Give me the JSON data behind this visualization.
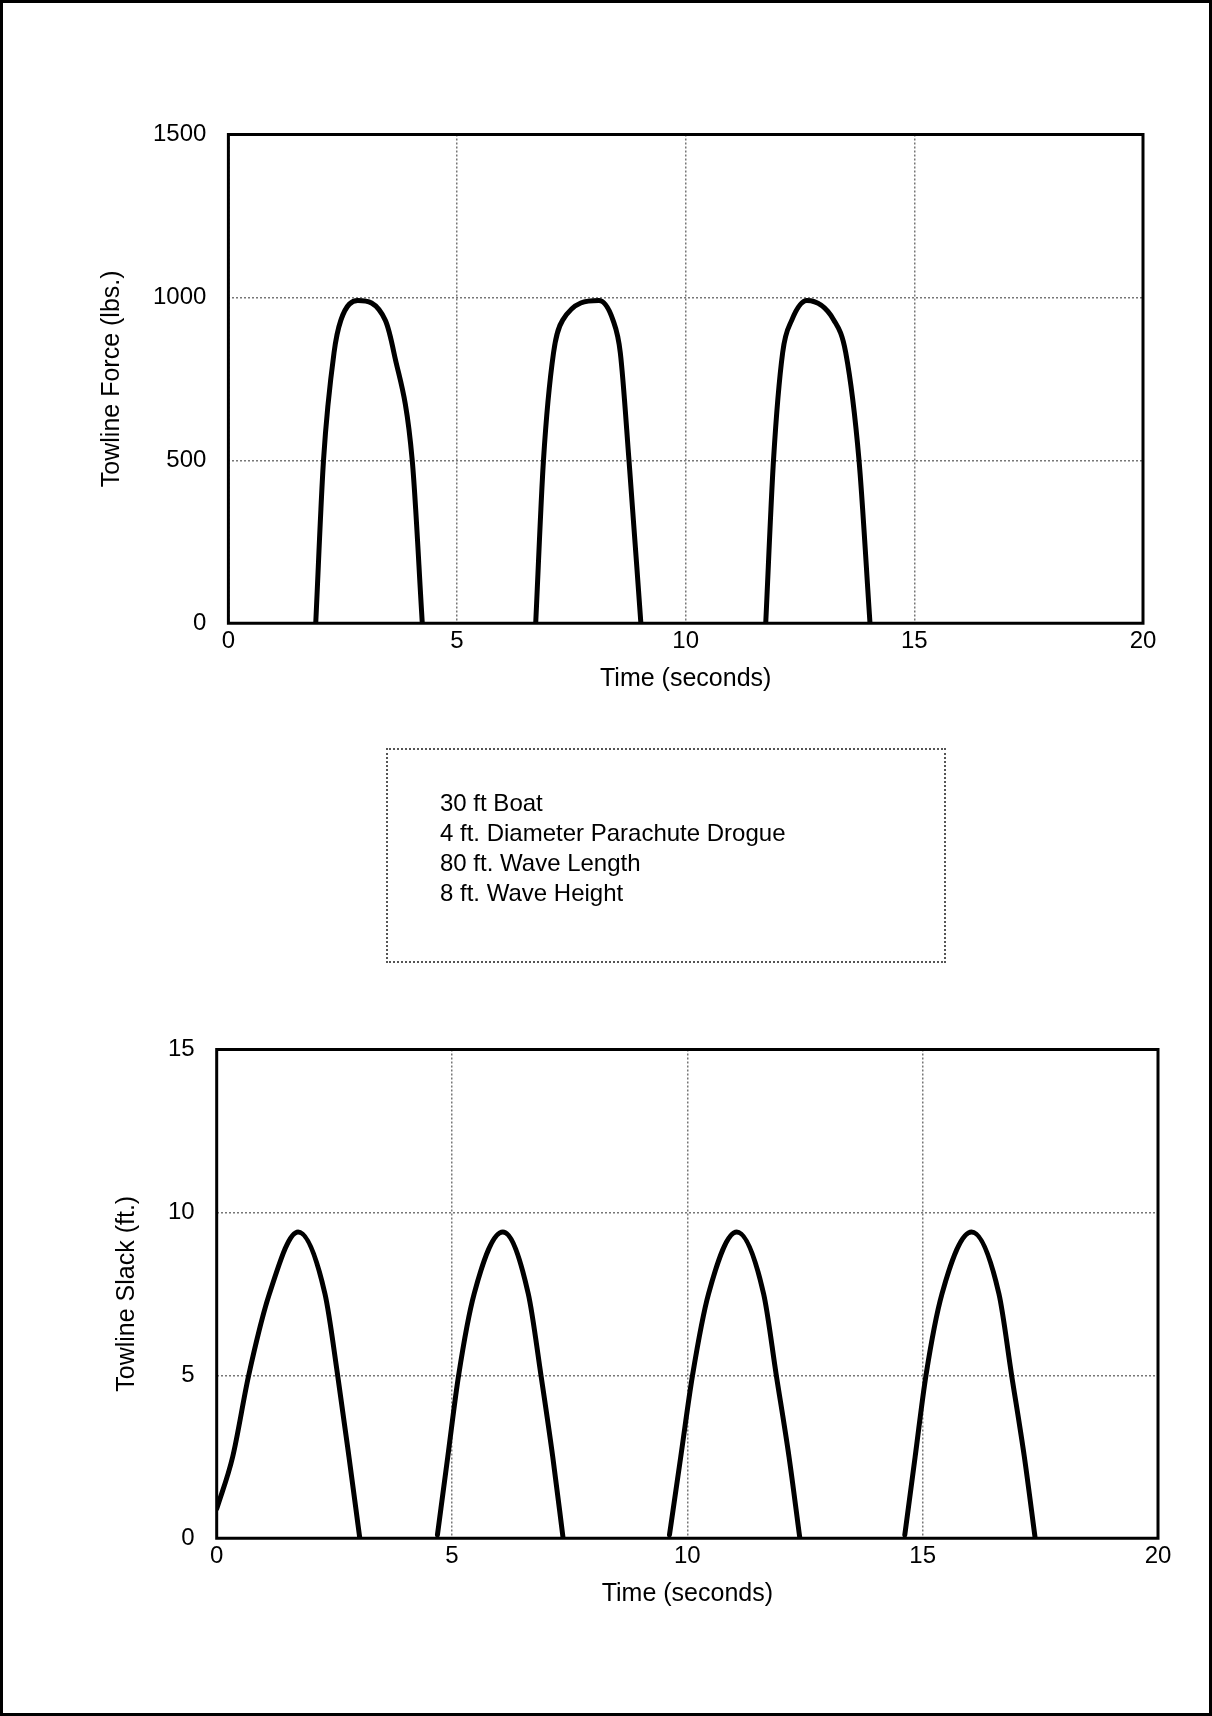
{
  "chart_data": [
    {
      "type": "line",
      "xlabel": "Time (seconds)",
      "ylabel": "Towline Force (lbs.)",
      "x": [
        1.91,
        2.08,
        2.31,
        2.46,
        2.83,
        3.43,
        3.62,
        4.02,
        4.24,
        5.5,
        6.72,
        6.89,
        7.11,
        7.31,
        8.1,
        8.41,
        8.57,
        8.76,
        9.02,
        10.4,
        11.75,
        11.92,
        12.12,
        12.32,
        12.65,
        13.24,
        13.5,
        13.79,
        14.03
      ],
      "series": [
        {
          "color": "#000000",
          "values": [
            0,
            500,
            830,
            930,
            990,
            930,
            830,
            500,
            0,
            null,
            0,
            500,
            830,
            930,
            990,
            930,
            830,
            500,
            0,
            null,
            0,
            500,
            830,
            930,
            990,
            930,
            830,
            500,
            0
          ]
        }
      ],
      "xlim": [
        0,
        20
      ],
      "xticks": [
        0,
        5,
        10,
        15,
        20
      ],
      "ylim": [
        0,
        1500
      ],
      "yticks": [
        0,
        500,
        1000,
        1500
      ],
      "grid": true
    },
    {
      "type": "other",
      "annotations": [
        "30 ft Boat",
        "4 ft. Diameter Parachute Drogue",
        "80 ft. Wave Length",
        "8 ft. Wave Height"
      ]
    },
    {
      "type": "line",
      "xlabel": "Time (seconds)",
      "ylabel": "Towline Slack (ft.)",
      "x": [
        0,
        0.34,
        0.68,
        1.12,
        1.73,
        2.3,
        2.57,
        2.81,
        3.04,
        3.9,
        4.69,
        4.91,
        5.14,
        5.47,
        6.08,
        6.62,
        6.89,
        7.14,
        7.36,
        8.5,
        9.62,
        9.86,
        10.11,
        10.45,
        11.05,
        11.62,
        11.89,
        12.16,
        12.39,
        13.5,
        14.62,
        14.84,
        15.07,
        15.41,
        16.04,
        16.62,
        16.89,
        17.16,
        17.39
      ],
      "series": [
        {
          "color": "#000000",
          "values": [
            0.9,
            2.5,
            5,
            7.5,
            9.4,
            7.5,
            5,
            2.5,
            0,
            null,
            0.1,
            2.5,
            5,
            7.5,
            9.4,
            7.5,
            5,
            2.5,
            0,
            null,
            0.1,
            2.5,
            5,
            7.5,
            9.4,
            7.5,
            5,
            2.5,
            0,
            null,
            0.1,
            2.5,
            5,
            7.5,
            9.4,
            7.5,
            5,
            2.5,
            0
          ]
        }
      ],
      "xlim": [
        0,
        20
      ],
      "xticks": [
        0,
        5,
        10,
        15,
        20
      ],
      "ylim": [
        0,
        15
      ],
      "yticks": [
        0,
        5,
        10,
        15
      ],
      "grid": true
    }
  ]
}
